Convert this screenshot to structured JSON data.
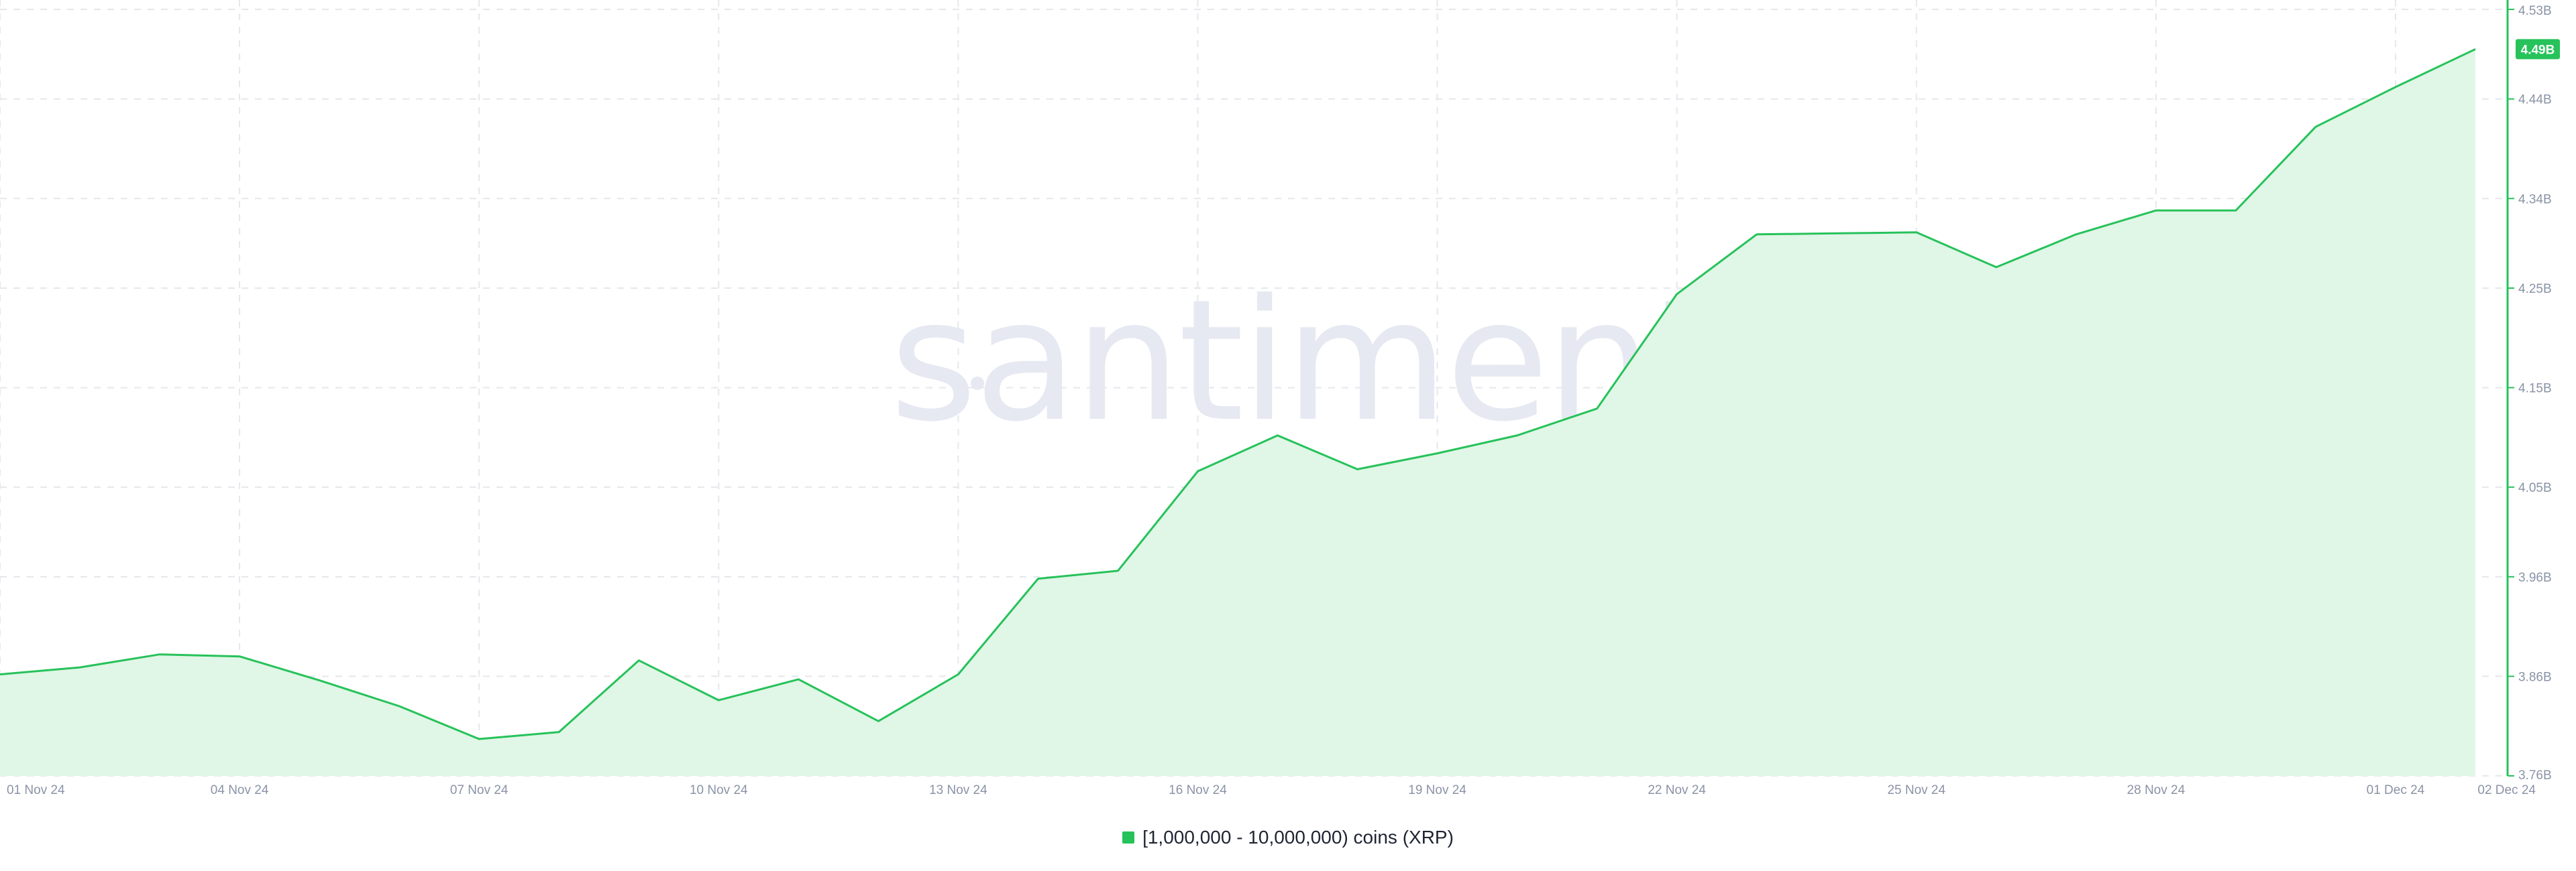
{
  "watermark": {
    "text": "santiment"
  },
  "colors": {
    "line": "#26c25a",
    "area": "#e0f6e6",
    "grid": "#e5e7ec",
    "axis": "#26c25a",
    "badge": "#26c25a",
    "tick_text": "#8a93a6"
  },
  "chart_data": {
    "type": "area",
    "title": "",
    "xlabel": "",
    "ylabel": "",
    "grid": true,
    "legend_placement": "bottom-center",
    "x": [
      "2024-11-01",
      "2024-11-02",
      "2024-11-03",
      "2024-11-04",
      "2024-11-05",
      "2024-11-06",
      "2024-11-07",
      "2024-11-08",
      "2024-11-09",
      "2024-11-10",
      "2024-11-11",
      "2024-11-12",
      "2024-11-13",
      "2024-11-14",
      "2024-11-15",
      "2024-11-16",
      "2024-11-17",
      "2024-11-18",
      "2024-11-19",
      "2024-11-20",
      "2024-11-21",
      "2024-11-22",
      "2024-11-23",
      "2024-11-24",
      "2024-11-25",
      "2024-11-26",
      "2024-11-27",
      "2024-11-28",
      "2024-11-29",
      "2024-11-30",
      "2024-12-01",
      "2024-12-02"
    ],
    "series": [
      {
        "name": "[1,000,000 - 10,000,000) coins (XRP)",
        "values": [
          3.862,
          3.869,
          3.882,
          3.88,
          3.856,
          3.83,
          3.797,
          3.804,
          3.876,
          3.836,
          3.857,
          3.815,
          3.862,
          3.958,
          3.966,
          4.066,
          4.102,
          4.068,
          4.084,
          4.102,
          4.129,
          4.244,
          4.304,
          4.305,
          4.306,
          4.271,
          4.304,
          4.328,
          4.328,
          4.412,
          4.452,
          4.49
        ]
      }
    ],
    "x_ticks": [
      {
        "date": "2024-11-01",
        "label": "01 Nov 24"
      },
      {
        "date": "2024-11-04",
        "label": "04 Nov 24"
      },
      {
        "date": "2024-11-07",
        "label": "07 Nov 24"
      },
      {
        "date": "2024-11-10",
        "label": "10 Nov 24"
      },
      {
        "date": "2024-11-13",
        "label": "13 Nov 24"
      },
      {
        "date": "2024-11-16",
        "label": "16 Nov 24"
      },
      {
        "date": "2024-11-19",
        "label": "19 Nov 24"
      },
      {
        "date": "2024-11-22",
        "label": "22 Nov 24"
      },
      {
        "date": "2024-11-25",
        "label": "25 Nov 24"
      },
      {
        "date": "2024-11-28",
        "label": "28 Nov 24"
      },
      {
        "date": "2024-12-01",
        "label": "01 Dec 24"
      },
      {
        "date": "2024-12-02",
        "label": "02 Dec 24"
      }
    ],
    "y_ticks": [
      {
        "value": 3.76,
        "label": "3.76B"
      },
      {
        "value": 3.86,
        "label": "3.86B"
      },
      {
        "value": 3.96,
        "label": "3.96B"
      },
      {
        "value": 4.05,
        "label": "4.05B"
      },
      {
        "value": 4.15,
        "label": "4.15B"
      },
      {
        "value": 4.25,
        "label": "4.25B"
      },
      {
        "value": 4.34,
        "label": "4.34B"
      },
      {
        "value": 4.44,
        "label": "4.44B"
      },
      {
        "value": 4.53,
        "label": "4.53B"
      }
    ],
    "ylim": [
      3.76,
      4.53
    ],
    "xlim": [
      "2024-11-01",
      "2024-12-02"
    ],
    "last_value": {
      "value": 4.49,
      "label": "4.49B"
    }
  },
  "legend": {
    "items": [
      {
        "label": "[1,000,000 - 10,000,000) coins (XRP)",
        "color": "#26c25a"
      }
    ]
  }
}
